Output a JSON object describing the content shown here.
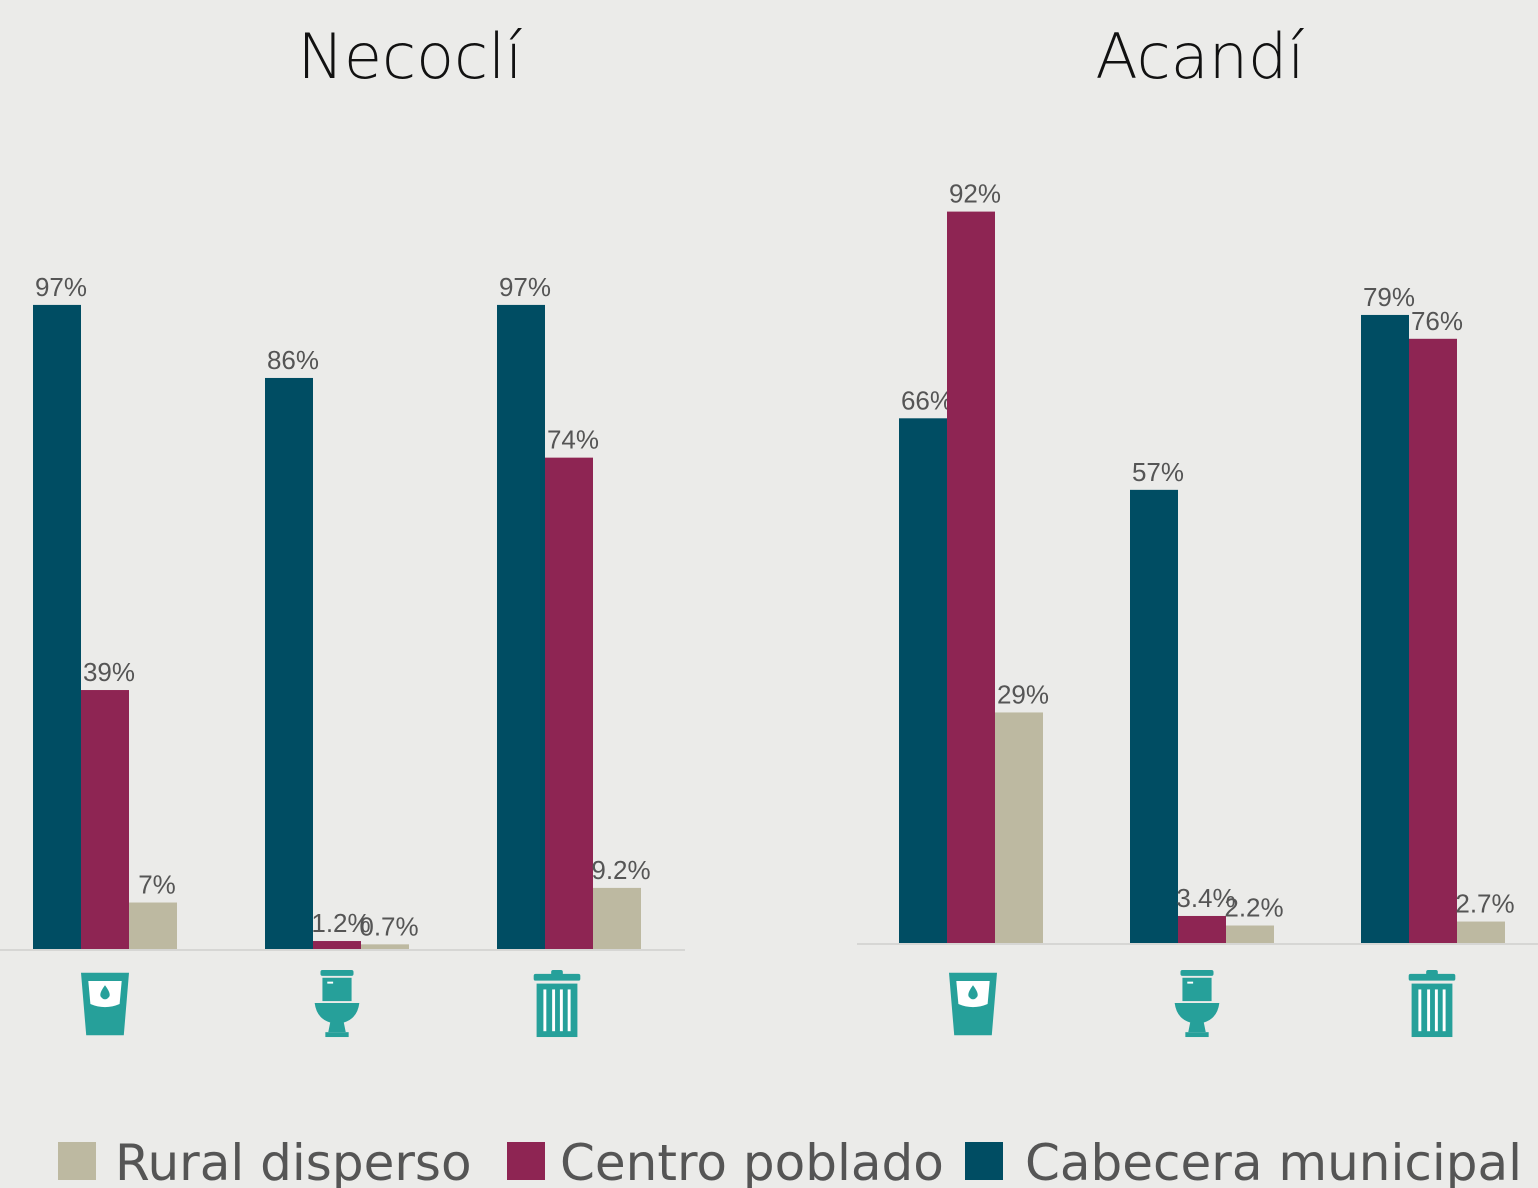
{
  "chart_data": [
    {
      "type": "bar",
      "title": "Necoclí",
      "categories": [
        null,
        null,
        null
      ],
      "ylim": [
        0,
        100
      ],
      "series": [
        {
          "name": "Cabecera municipal",
          "color": "#004d63",
          "values": [
            97,
            86,
            97
          ],
          "value_labels": [
            "97%",
            "86%",
            "97%"
          ]
        },
        {
          "name": "Centro poblado",
          "color": "#8e2553",
          "values": [
            39,
            1.2,
            74
          ],
          "value_labels": [
            "39%",
            "1.2%",
            "74%"
          ]
        },
        {
          "name": "Rural disperso",
          "color": "#bdb9a1",
          "values": [
            7,
            0.7,
            9.2
          ],
          "value_labels": [
            "7%",
            "0.7%",
            "9.2%"
          ]
        }
      ]
    },
    {
      "type": "bar",
      "title": "Acandí",
      "categories": [
        null,
        null,
        null
      ],
      "ylim": [
        0,
        100
      ],
      "series": [
        {
          "values": [
            66,
            57,
            79
          ],
          "value_labels": [
            "66%",
            "57%",
            "79%"
          ]
        },
        {
          "values": [
            92,
            3.4,
            76
          ],
          "value_labels": [
            "92%",
            "3.4%",
            "76%"
          ]
        },
        {
          "values": [
            29,
            2.2,
            2.7
          ],
          "value_labels": [
            "29%",
            "2.2%",
            "2.7%"
          ]
        }
      ]
    }
  ]
}
